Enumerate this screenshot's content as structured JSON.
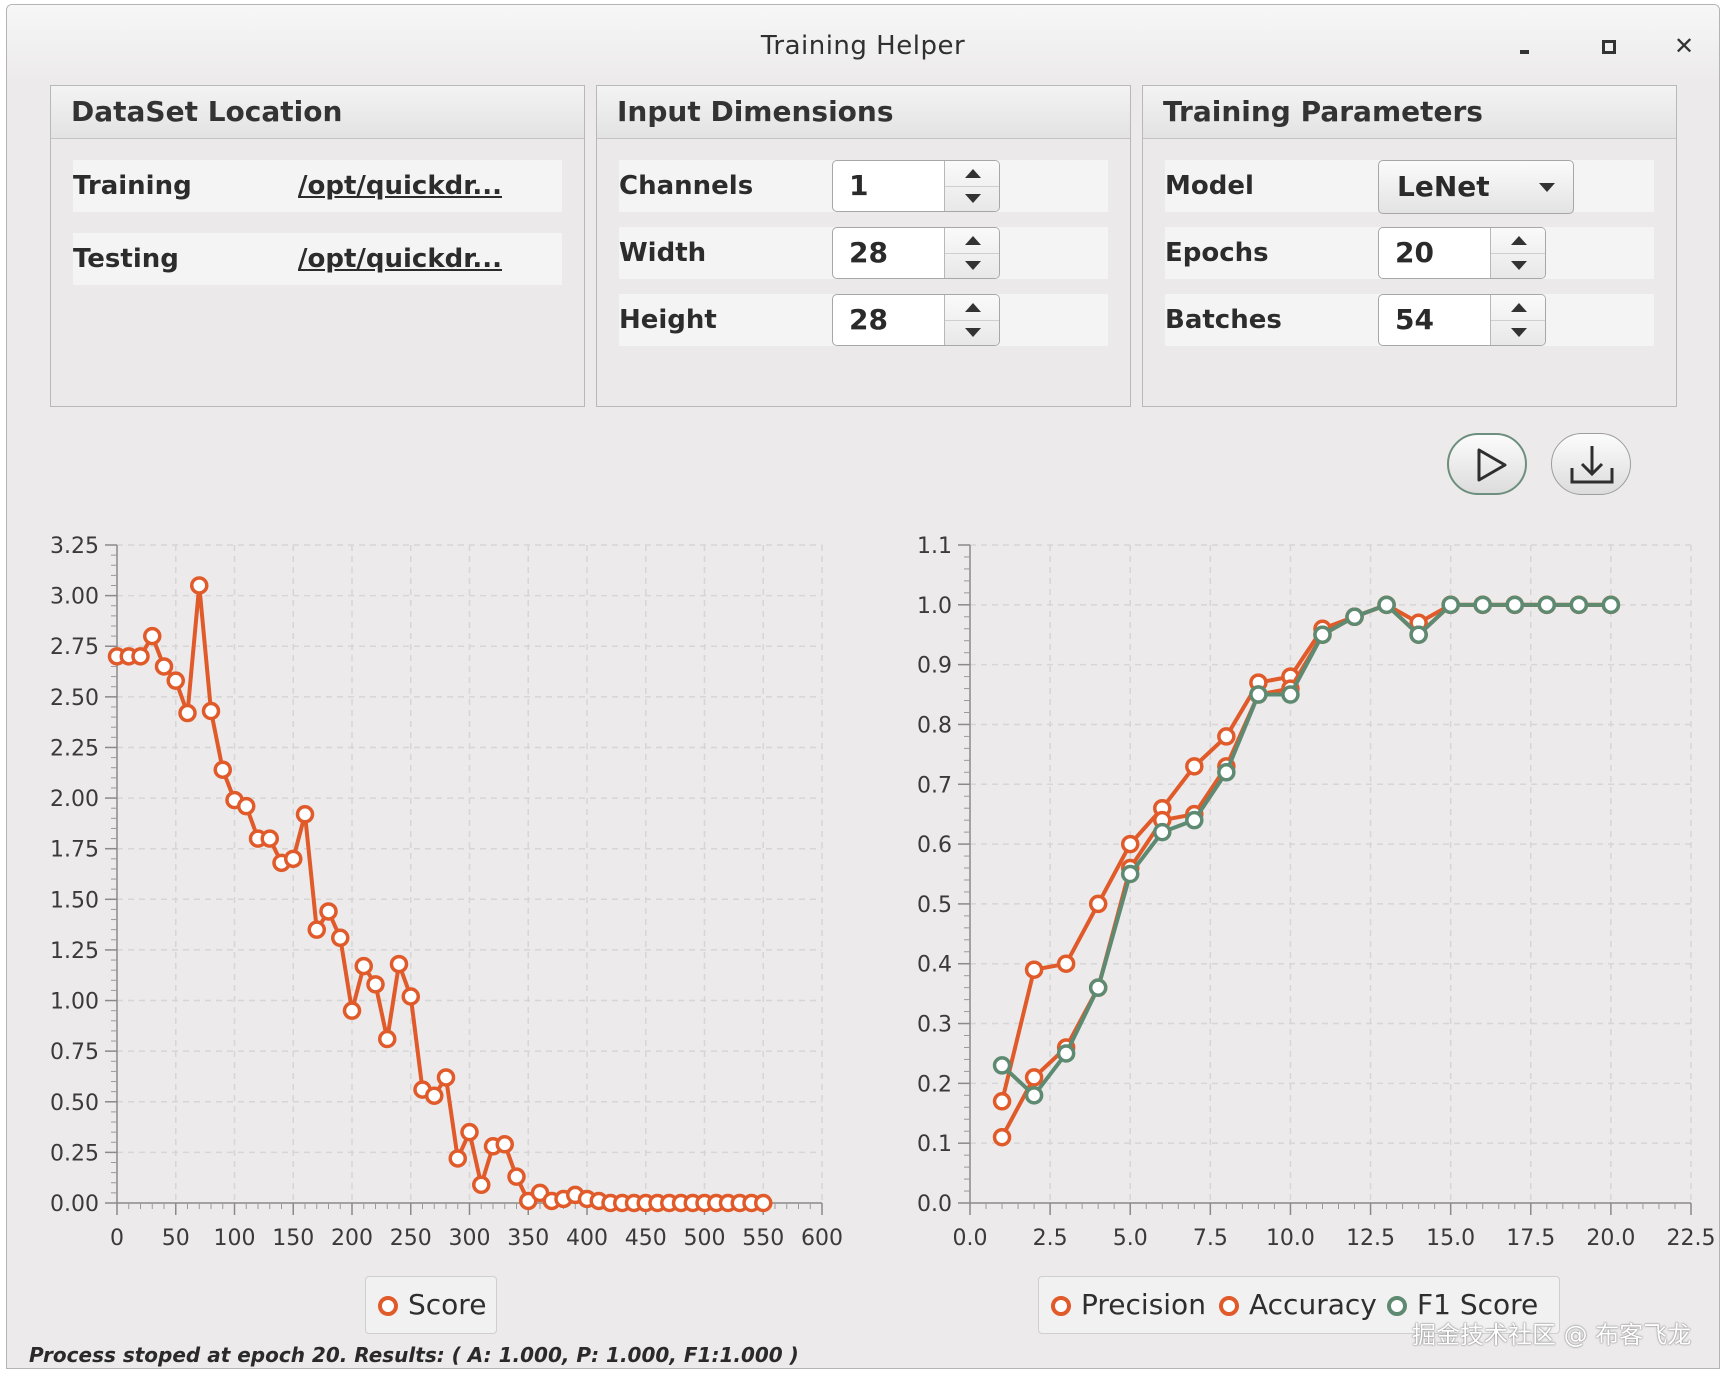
{
  "window": {
    "title": "Training Helper"
  },
  "panels": {
    "dataset": {
      "title": "DataSet Location",
      "training_label": "Training",
      "training_path": "/opt/quickdr...",
      "testing_label": "Testing",
      "testing_path": "/opt/quickdr..."
    },
    "input": {
      "title": "Input Dimensions",
      "channels_label": "Channels",
      "channels_value": "1",
      "width_label": "Width",
      "width_value": "28",
      "height_label": "Height",
      "height_value": "28"
    },
    "training": {
      "title": "Training Parameters",
      "model_label": "Model",
      "model_value": "LeNet",
      "epochs_label": "Epochs",
      "epochs_value": "20",
      "batches_label": "Batches",
      "batches_value": "54"
    }
  },
  "icons": {
    "play": "play-icon",
    "download": "download-icon",
    "minimize": "minimize-icon",
    "maximize": "maximize-icon",
    "close": "close-icon"
  },
  "colors": {
    "precision": "#e05a2a",
    "accuracy": "#e05a2a",
    "f1": "#5e8a72",
    "score": "#e05a2a"
  },
  "status": "Process stoped at epoch 20. Results: ( A: 1.000, P: 1.000, F1:1.000 )",
  "watermark": "掘金技术社区 @ 布客飞龙",
  "chart_data": [
    {
      "type": "line",
      "xlim": [
        0,
        600
      ],
      "ylim": [
        0,
        3.25
      ],
      "x_ticks": [
        0,
        50,
        100,
        150,
        200,
        250,
        300,
        350,
        400,
        450,
        500,
        550,
        600
      ],
      "y_ticks": [
        0,
        0.25,
        0.5,
        0.75,
        1.0,
        1.25,
        1.5,
        1.75,
        2.0,
        2.25,
        2.5,
        2.75,
        3.0,
        3.25
      ],
      "x_tick_labels": [
        "0",
        "50",
        "100",
        "150",
        "200",
        "250",
        "300",
        "350",
        "400",
        "450",
        "500",
        "550",
        "600"
      ],
      "y_tick_labels": [
        "0.00",
        "0.25",
        "0.50",
        "0.75",
        "1.00",
        "1.25",
        "1.50",
        "1.75",
        "2.00",
        "2.25",
        "2.50",
        "2.75",
        "3.00",
        "3.25"
      ],
      "grid": true,
      "legend": "bottom",
      "series": [
        {
          "name": "Score",
          "x": [
            0,
            10,
            20,
            30,
            40,
            50,
            60,
            70,
            80,
            90,
            100,
            110,
            120,
            130,
            140,
            150,
            160,
            170,
            180,
            190,
            200,
            210,
            220,
            230,
            240,
            250,
            260,
            270,
            280,
            290,
            300,
            310,
            320,
            330,
            340,
            350,
            360,
            370,
            380,
            390,
            400,
            410,
            420,
            430,
            440,
            450,
            460,
            470,
            480,
            490,
            500,
            510,
            520,
            530,
            540,
            550
          ],
          "y": [
            2.7,
            2.7,
            2.7,
            2.8,
            2.65,
            2.58,
            2.42,
            3.05,
            2.43,
            2.14,
            1.99,
            1.96,
            1.8,
            1.8,
            1.68,
            1.7,
            1.92,
            1.35,
            1.44,
            1.31,
            0.95,
            1.17,
            1.08,
            0.81,
            1.18,
            1.02,
            0.56,
            0.53,
            0.62,
            0.22,
            0.35,
            0.09,
            0.28,
            0.29,
            0.13,
            0.01,
            0.05,
            0.01,
            0.02,
            0.04,
            0.02,
            0.01,
            0.0,
            0.0,
            0.0,
            0.0,
            0.0,
            0.0,
            0.0,
            0.0,
            0.0,
            0.0,
            0.0,
            0.0,
            0.0,
            0.0
          ]
        }
      ]
    },
    {
      "type": "line",
      "xlim": [
        0,
        22.5
      ],
      "ylim": [
        0,
        1.1
      ],
      "x_ticks": [
        0,
        2.5,
        5,
        7.5,
        10,
        12.5,
        15,
        17.5,
        20,
        22.5
      ],
      "y_ticks": [
        0,
        0.1,
        0.2,
        0.3,
        0.4,
        0.5,
        0.6,
        0.7,
        0.8,
        0.9,
        1.0,
        1.1
      ],
      "x_tick_labels": [
        "0.0",
        "2.5",
        "5.0",
        "7.5",
        "10.0",
        "12.5",
        "15.0",
        "17.5",
        "20.0",
        "22.5"
      ],
      "y_tick_labels": [
        "0.0",
        "0.1",
        "0.2",
        "0.3",
        "0.4",
        "0.5",
        "0.6",
        "0.7",
        "0.8",
        "0.9",
        "1.0",
        "1.1"
      ],
      "grid": true,
      "legend": "bottom",
      "x": [
        1,
        2,
        3,
        4,
        5,
        6,
        7,
        8,
        9,
        10,
        11,
        12,
        13,
        14,
        15,
        16,
        17,
        18,
        19,
        20
      ],
      "series": [
        {
          "name": "Precision",
          "values": [
            0.17,
            0.39,
            0.4,
            0.5,
            0.6,
            0.66,
            0.73,
            0.78,
            0.87,
            0.88,
            0.96,
            0.98,
            1.0,
            0.97,
            1.0,
            1.0,
            1.0,
            1.0,
            1.0,
            1.0
          ]
        },
        {
          "name": "Accuracy",
          "values": [
            0.11,
            0.21,
            0.26,
            0.36,
            0.56,
            0.64,
            0.65,
            0.73,
            0.85,
            0.86,
            0.95,
            0.98,
            1.0,
            0.95,
            1.0,
            1.0,
            1.0,
            1.0,
            1.0,
            1.0
          ]
        },
        {
          "name": "F1 Score",
          "values": [
            0.23,
            0.18,
            0.25,
            0.36,
            0.55,
            0.62,
            0.64,
            0.72,
            0.85,
            0.85,
            0.95,
            0.98,
            1.0,
            0.95,
            1.0,
            1.0,
            1.0,
            1.0,
            1.0,
            1.0
          ]
        }
      ]
    }
  ]
}
